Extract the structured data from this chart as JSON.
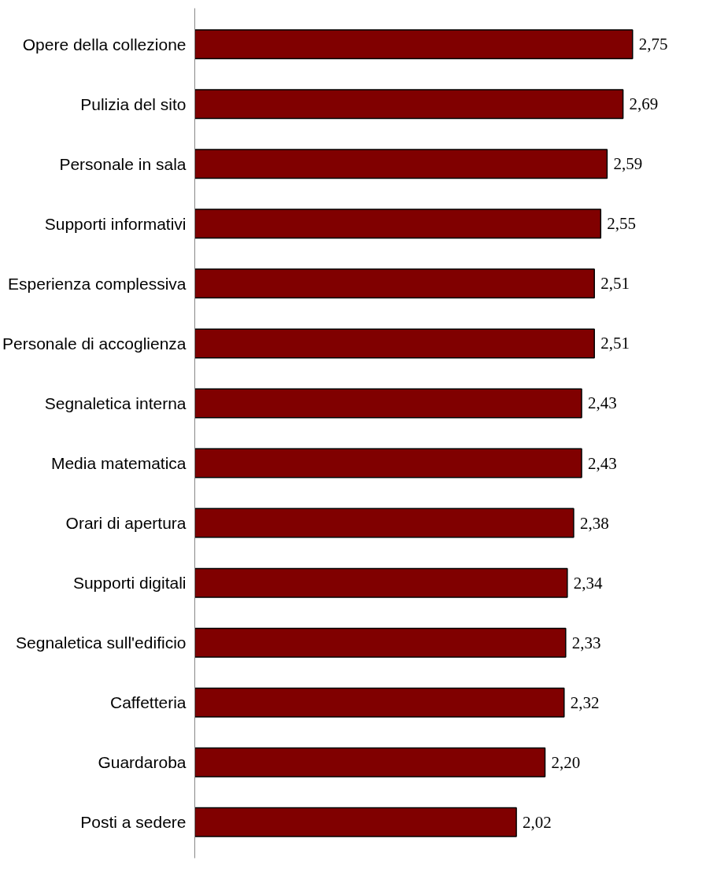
{
  "chart_data": {
    "type": "bar",
    "orientation": "horizontal",
    "color": "#800000",
    "categories": [
      "Opere della collezione",
      "Pulizia del sito",
      "Personale in sala",
      "Supporti informativi",
      "Esperienza complessiva",
      "Personale di accoglienza",
      "Segnaletica interna",
      "Media matematica",
      "Orari di apertura",
      "Supporti digitali",
      "Segnaletica sull'edificio",
      "Caffetteria",
      "Guardaroba",
      "Posti a sedere"
    ],
    "values": [
      2.75,
      2.69,
      2.59,
      2.55,
      2.51,
      2.51,
      2.43,
      2.43,
      2.38,
      2.34,
      2.33,
      2.32,
      2.2,
      2.02
    ],
    "value_labels": [
      "2,75",
      "2,69",
      "2,59",
      "2,55",
      "2,51",
      "2,51",
      "2,43",
      "2,43",
      "2,38",
      "2,34",
      "2,33",
      "2,32",
      "2,20",
      "2,02"
    ],
    "grid": false
  }
}
